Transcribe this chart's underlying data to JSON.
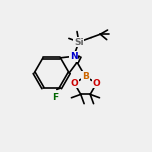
{
  "bg_color": "#f0f0f0",
  "bond_color": "#000000",
  "atom_colors": {
    "N": "#0000cc",
    "B": "#cc6600",
    "O": "#cc0000",
    "F": "#006600",
    "Si": "#666666",
    "C": "#000000"
  },
  "bond_width": 1.2,
  "font_size_atom": 6.5
}
